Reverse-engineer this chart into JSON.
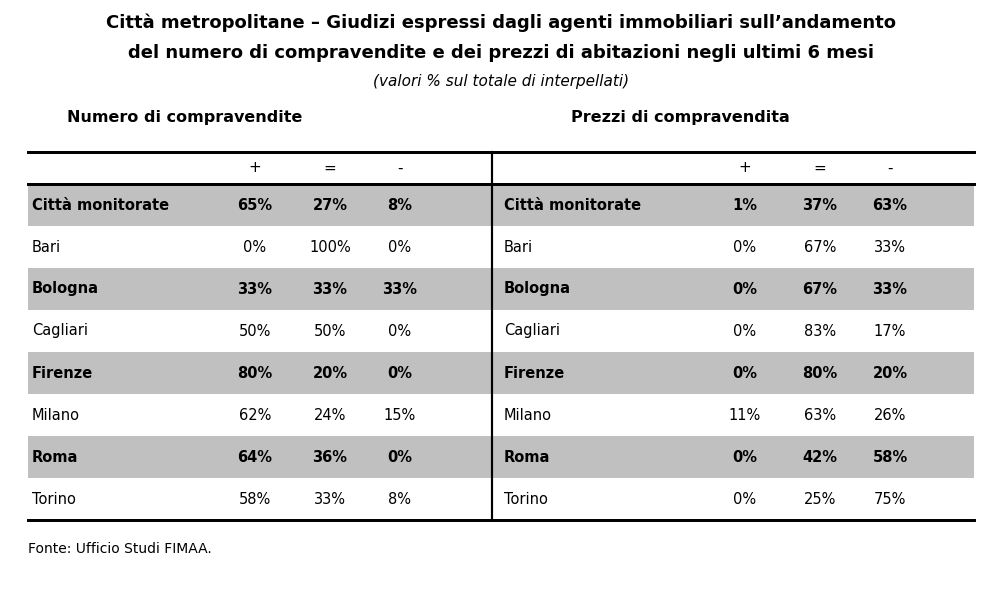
{
  "title_line1": "Città metropolitane – Giudizi espressi dagli agenti immobiliari sull’andamento",
  "title_line2": "del numero di compravendite e dei prezzi di abitazioni negli ultimi 6 mesi",
  "title_line3": "(valori % sul totale di interpellati)",
  "section1_header": "Numero di compravendite",
  "section2_header": "Prezzi di compravendita",
  "col_headers": [
    "+",
    "=",
    "-"
  ],
  "rows": [
    {
      "label": "Città monitorate",
      "bold": true,
      "bg": "#c0c0c0",
      "left": [
        "65%",
        "27%",
        "8%"
      ],
      "right": [
        "1%",
        "37%",
        "63%"
      ]
    },
    {
      "label": "Bari",
      "bold": false,
      "bg": "#ffffff",
      "left": [
        "0%",
        "100%",
        "0%"
      ],
      "right": [
        "0%",
        "67%",
        "33%"
      ]
    },
    {
      "label": "Bologna",
      "bold": true,
      "bg": "#c0c0c0",
      "left": [
        "33%",
        "33%",
        "33%"
      ],
      "right": [
        "0%",
        "67%",
        "33%"
      ]
    },
    {
      "label": "Cagliari",
      "bold": false,
      "bg": "#ffffff",
      "left": [
        "50%",
        "50%",
        "0%"
      ],
      "right": [
        "0%",
        "83%",
        "17%"
      ]
    },
    {
      "label": "Firenze",
      "bold": true,
      "bg": "#c0c0c0",
      "left": [
        "80%",
        "20%",
        "0%"
      ],
      "right": [
        "0%",
        "80%",
        "20%"
      ]
    },
    {
      "label": "Milano",
      "bold": false,
      "bg": "#ffffff",
      "left": [
        "62%",
        "24%",
        "15%"
      ],
      "right": [
        "11%",
        "63%",
        "26%"
      ]
    },
    {
      "label": "Roma",
      "bold": true,
      "bg": "#c0c0c0",
      "left": [
        "64%",
        "36%",
        "0%"
      ],
      "right": [
        "0%",
        "42%",
        "58%"
      ]
    },
    {
      "label": "Torino",
      "bold": false,
      "bg": "#ffffff",
      "left": [
        "58%",
        "33%",
        "8%"
      ],
      "right": [
        "0%",
        "25%",
        "75%"
      ]
    }
  ],
  "footer": "Fonte: Ufficio Studi FIMAA.",
  "bg_color": "#ffffff",
  "divider_color": "#000000",
  "text_color": "#000000"
}
